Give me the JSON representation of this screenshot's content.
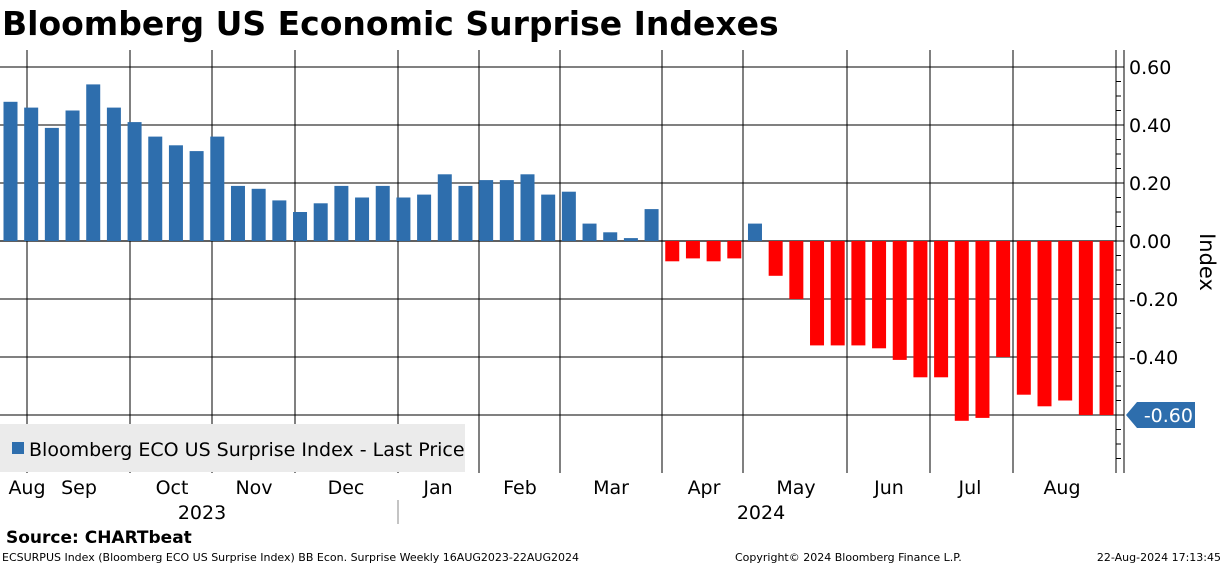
{
  "chart_data": {
    "type": "bar",
    "title": "Bloomberg US Economic Surprise Indexes",
    "ylabel": "Index",
    "xlabel": "",
    "ylim": [
      -0.8,
      0.65
    ],
    "yticks": [
      0.6,
      0.4,
      0.2,
      0.0,
      -0.2,
      -0.4,
      -0.6
    ],
    "ytick_labels": [
      "0.60",
      "0.40",
      "0.20",
      "0.00",
      "-0.20",
      "-0.40",
      "-0.60"
    ],
    "grid": true,
    "legend": {
      "placement": "bottom-left",
      "entries": [
        {
          "label": "Bloomberg ECO US Surprise Index - Last Price",
          "color": "#2e6ead"
        }
      ]
    },
    "colors": {
      "positive": "#2e6ead",
      "negative": "#ff0000",
      "callout_bg": "#2e6ead",
      "callout_text": "#ffffff"
    },
    "series": [
      {
        "name": "Bloomberg ECO US Surprise Index - Last Price",
        "values": [
          0.48,
          0.46,
          0.39,
          0.45,
          0.54,
          0.46,
          0.41,
          0.36,
          0.33,
          0.31,
          0.36,
          0.19,
          0.18,
          0.14,
          0.1,
          0.13,
          0.19,
          0.15,
          0.19,
          0.15,
          0.16,
          0.23,
          0.19,
          0.21,
          0.21,
          0.23,
          0.16,
          0.17,
          0.06,
          0.03,
          0.01,
          0.11,
          -0.07,
          -0.06,
          -0.07,
          -0.06,
          0.06,
          -0.12,
          -0.2,
          -0.36,
          -0.36,
          -0.36,
          -0.37,
          -0.41,
          -0.47,
          -0.47,
          -0.62,
          -0.61,
          -0.4,
          -0.53,
          -0.57,
          -0.55,
          -0.6,
          -0.6
        ]
      }
    ],
    "month_labels": [
      "Aug",
      "Sep",
      "Oct",
      "Nov",
      "Dec",
      "Jan",
      "Feb",
      "Mar",
      "Apr",
      "May",
      "Jun",
      "Jul",
      "Aug"
    ],
    "year_labels": [
      "2023",
      "2024"
    ],
    "last_value_label": "-0.60"
  },
  "footer": {
    "source": "Source: CHARTbeat",
    "series_info": "ECSURPUS Index (Bloomberg ECO US Surprise Index) BB Econ. Surprise  Weekly 16AUG2023-22AUG2024",
    "copyright": "Copyright© 2024 Bloomberg Finance L.P.",
    "timestamp": "22-Aug-2024 17:13:45"
  }
}
